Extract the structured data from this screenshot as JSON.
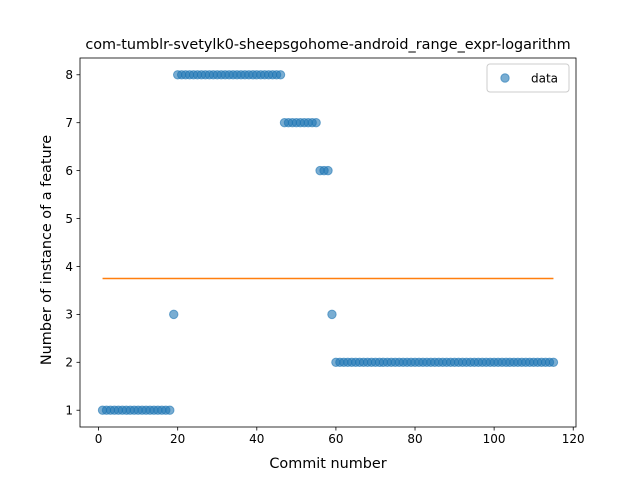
{
  "chart_data": {
    "type": "scatter",
    "title": "com-tumblr-svetylk0-sheepsgohome-android_range_expr-logarithm",
    "xlabel": "Commit number",
    "ylabel": "Number of instance of a feature",
    "xlim": [
      -4.7,
      120.7
    ],
    "ylim": [
      0.65,
      8.35
    ],
    "xticks": [
      0,
      20,
      40,
      60,
      80,
      100,
      120
    ],
    "yticks": [
      1,
      2,
      3,
      4,
      5,
      6,
      7,
      8
    ],
    "grid": false,
    "legend_position": "top-right",
    "colors": {
      "data": "#1f77b4",
      "fit": "#ff7f0e"
    },
    "series": [
      {
        "name": "data",
        "kind": "scatter",
        "points": [
          [
            1,
            1
          ],
          [
            2,
            1
          ],
          [
            3,
            1
          ],
          [
            4,
            1
          ],
          [
            5,
            1
          ],
          [
            6,
            1
          ],
          [
            7,
            1
          ],
          [
            8,
            1
          ],
          [
            9,
            1
          ],
          [
            10,
            1
          ],
          [
            11,
            1
          ],
          [
            12,
            1
          ],
          [
            13,
            1
          ],
          [
            14,
            1
          ],
          [
            15,
            1
          ],
          [
            16,
            1
          ],
          [
            17,
            1
          ],
          [
            18,
            1
          ],
          [
            19,
            3
          ],
          [
            20,
            8
          ],
          [
            21,
            8
          ],
          [
            22,
            8
          ],
          [
            23,
            8
          ],
          [
            24,
            8
          ],
          [
            25,
            8
          ],
          [
            26,
            8
          ],
          [
            27,
            8
          ],
          [
            28,
            8
          ],
          [
            29,
            8
          ],
          [
            30,
            8
          ],
          [
            31,
            8
          ],
          [
            32,
            8
          ],
          [
            33,
            8
          ],
          [
            34,
            8
          ],
          [
            35,
            8
          ],
          [
            36,
            8
          ],
          [
            37,
            8
          ],
          [
            38,
            8
          ],
          [
            39,
            8
          ],
          [
            40,
            8
          ],
          [
            41,
            8
          ],
          [
            42,
            8
          ],
          [
            43,
            8
          ],
          [
            44,
            8
          ],
          [
            45,
            8
          ],
          [
            46,
            8
          ],
          [
            47,
            7
          ],
          [
            48,
            7
          ],
          [
            49,
            7
          ],
          [
            50,
            7
          ],
          [
            51,
            7
          ],
          [
            52,
            7
          ],
          [
            53,
            7
          ],
          [
            54,
            7
          ],
          [
            55,
            7
          ],
          [
            56,
            6
          ],
          [
            57,
            6
          ],
          [
            58,
            6
          ],
          [
            59,
            3
          ],
          [
            60,
            2
          ],
          [
            61,
            2
          ],
          [
            62,
            2
          ],
          [
            63,
            2
          ],
          [
            64,
            2
          ],
          [
            65,
            2
          ],
          [
            66,
            2
          ],
          [
            67,
            2
          ],
          [
            68,
            2
          ],
          [
            69,
            2
          ],
          [
            70,
            2
          ],
          [
            71,
            2
          ],
          [
            72,
            2
          ],
          [
            73,
            2
          ],
          [
            74,
            2
          ],
          [
            75,
            2
          ],
          [
            76,
            2
          ],
          [
            77,
            2
          ],
          [
            78,
            2
          ],
          [
            79,
            2
          ],
          [
            80,
            2
          ],
          [
            81,
            2
          ],
          [
            82,
            2
          ],
          [
            83,
            2
          ],
          [
            84,
            2
          ],
          [
            85,
            2
          ],
          [
            86,
            2
          ],
          [
            87,
            2
          ],
          [
            88,
            2
          ],
          [
            89,
            2
          ],
          [
            90,
            2
          ],
          [
            91,
            2
          ],
          [
            92,
            2
          ],
          [
            93,
            2
          ],
          [
            94,
            2
          ],
          [
            95,
            2
          ],
          [
            96,
            2
          ],
          [
            97,
            2
          ],
          [
            98,
            2
          ],
          [
            99,
            2
          ],
          [
            100,
            2
          ],
          [
            101,
            2
          ],
          [
            102,
            2
          ],
          [
            103,
            2
          ],
          [
            104,
            2
          ],
          [
            105,
            2
          ],
          [
            106,
            2
          ],
          [
            107,
            2
          ],
          [
            108,
            2
          ],
          [
            109,
            2
          ],
          [
            110,
            2
          ],
          [
            111,
            2
          ],
          [
            112,
            2
          ],
          [
            113,
            2
          ],
          [
            114,
            2
          ],
          [
            115,
            2
          ]
        ]
      },
      {
        "kind": "line",
        "x": [
          1,
          115
        ],
        "y": [
          3.75,
          3.75
        ]
      }
    ]
  }
}
